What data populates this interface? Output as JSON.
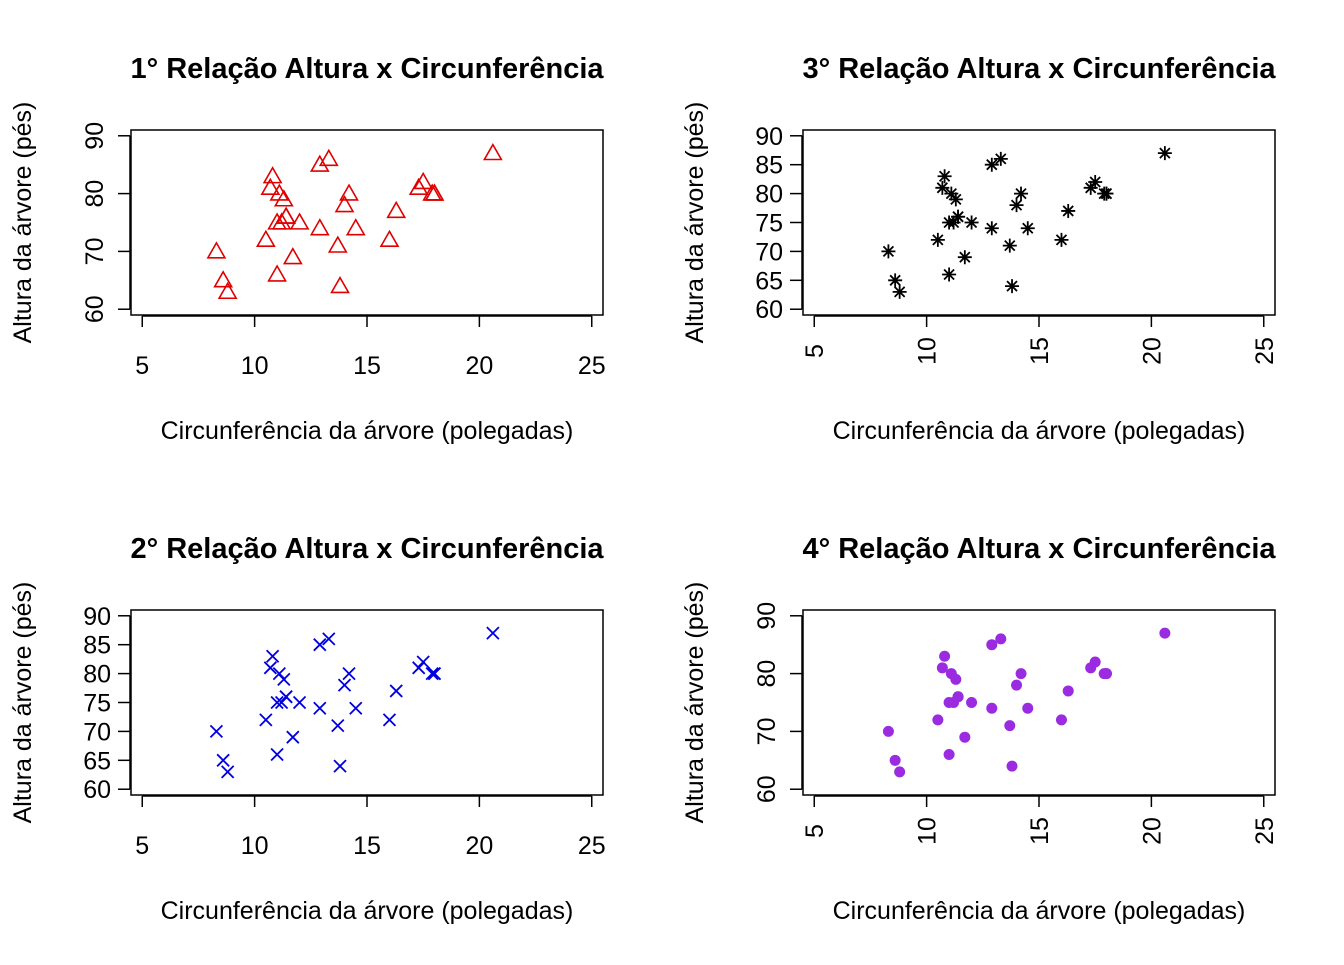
{
  "chart_data": [
    {
      "type": "scatter",
      "title": "1° Relação Altura x Circunferência",
      "xlabel": "Circunferência da árvore (polegadas)",
      "ylabel": "Altura da árvore (pés)",
      "xlim": [
        4.5,
        25.5
      ],
      "ylim": [
        59,
        91
      ],
      "xticks": [
        "5",
        "10",
        "15",
        "20",
        "25"
      ],
      "yticks": [
        "60",
        "70",
        "80",
        "90"
      ],
      "ytick_values": [
        60,
        70,
        80,
        90
      ],
      "x_tick_rotation": "horizontal",
      "marker": "open-triangle",
      "color": "#e00000",
      "x": [
        8.3,
        8.6,
        8.8,
        10.5,
        10.7,
        10.8,
        11.0,
        11.0,
        11.1,
        11.2,
        11.3,
        11.4,
        11.4,
        11.7,
        12.0,
        12.9,
        12.9,
        13.3,
        13.7,
        13.8,
        14.0,
        14.2,
        14.5,
        16.0,
        16.3,
        17.3,
        17.5,
        17.9,
        18.0,
        18.0,
        20.6
      ],
      "y": [
        70,
        65,
        63,
        72,
        81,
        83,
        66,
        75,
        80,
        75,
        79,
        76,
        76,
        69,
        75,
        74,
        85,
        86,
        71,
        64,
        78,
        80,
        74,
        72,
        77,
        81,
        82,
        80,
        80,
        80,
        87
      ]
    },
    {
      "type": "scatter",
      "title": "3° Relação Altura x Circunferência",
      "xlabel": "Circunferência da árvore (polegadas)",
      "ylabel": "Altura da árvore (pés)",
      "xlim": [
        4.5,
        25.5
      ],
      "ylim": [
        59,
        91
      ],
      "xticks": [
        "5",
        "10",
        "15",
        "20",
        "25"
      ],
      "yticks": [
        "60",
        "65",
        "70",
        "75",
        "80",
        "85",
        "90"
      ],
      "ytick_values": [
        60,
        65,
        70,
        75,
        80,
        85,
        90
      ],
      "x_tick_rotation": "vertical",
      "marker": "asterisk",
      "color": "#000000",
      "x": [
        8.3,
        8.6,
        8.8,
        10.5,
        10.7,
        10.8,
        11.0,
        11.0,
        11.1,
        11.2,
        11.3,
        11.4,
        11.4,
        11.7,
        12.0,
        12.9,
        12.9,
        13.3,
        13.7,
        13.8,
        14.0,
        14.2,
        14.5,
        16.0,
        16.3,
        17.3,
        17.5,
        17.9,
        18.0,
        18.0,
        20.6
      ],
      "y": [
        70,
        65,
        63,
        72,
        81,
        83,
        66,
        75,
        80,
        75,
        79,
        76,
        76,
        69,
        75,
        74,
        85,
        86,
        71,
        64,
        78,
        80,
        74,
        72,
        77,
        81,
        82,
        80,
        80,
        80,
        87
      ]
    },
    {
      "type": "scatter",
      "title": "2° Relação Altura x Circunferência",
      "xlabel": "Circunferência da árvore (polegadas)",
      "ylabel": "Altura da árvore (pés)",
      "xlim": [
        4.5,
        25.5
      ],
      "ylim": [
        59,
        91
      ],
      "xticks": [
        "5",
        "10",
        "15",
        "20",
        "25"
      ],
      "yticks": [
        "60",
        "65",
        "70",
        "75",
        "80",
        "85",
        "90"
      ],
      "ytick_values": [
        60,
        65,
        70,
        75,
        80,
        85,
        90
      ],
      "x_tick_rotation": "horizontal",
      "marker": "cross",
      "color": "#0000e0",
      "x": [
        8.3,
        8.6,
        8.8,
        10.5,
        10.7,
        10.8,
        11.0,
        11.0,
        11.1,
        11.2,
        11.3,
        11.4,
        11.4,
        11.7,
        12.0,
        12.9,
        12.9,
        13.3,
        13.7,
        13.8,
        14.0,
        14.2,
        14.5,
        16.0,
        16.3,
        17.3,
        17.5,
        17.9,
        18.0,
        18.0,
        20.6
      ],
      "y": [
        70,
        65,
        63,
        72,
        81,
        83,
        66,
        75,
        80,
        75,
        79,
        76,
        76,
        69,
        75,
        74,
        85,
        86,
        71,
        64,
        78,
        80,
        74,
        72,
        77,
        81,
        82,
        80,
        80,
        80,
        87
      ]
    },
    {
      "type": "scatter",
      "title": "4° Relação Altura x Circunferência",
      "xlabel": "Circunferência da árvore (polegadas)",
      "ylabel": "Altura da árvore (pés)",
      "xlim": [
        4.5,
        25.5
      ],
      "ylim": [
        59,
        91
      ],
      "xticks": [
        "5",
        "10",
        "15",
        "20",
        "25"
      ],
      "yticks": [
        "60",
        "70",
        "80",
        "90"
      ],
      "ytick_values": [
        60,
        70,
        80,
        90
      ],
      "x_tick_rotation": "vertical",
      "marker": "filled-circle",
      "color": "#9a2be0",
      "x": [
        8.3,
        8.6,
        8.8,
        10.5,
        10.7,
        10.8,
        11.0,
        11.0,
        11.1,
        11.2,
        11.3,
        11.4,
        11.4,
        11.7,
        12.0,
        12.9,
        12.9,
        13.3,
        13.7,
        13.8,
        14.0,
        14.2,
        14.5,
        16.0,
        16.3,
        17.3,
        17.5,
        17.9,
        18.0,
        18.0,
        20.6
      ],
      "y": [
        70,
        65,
        63,
        72,
        81,
        83,
        66,
        75,
        80,
        75,
        79,
        76,
        76,
        69,
        75,
        74,
        85,
        86,
        71,
        64,
        78,
        80,
        74,
        72,
        77,
        81,
        82,
        80,
        80,
        80,
        87
      ]
    }
  ]
}
